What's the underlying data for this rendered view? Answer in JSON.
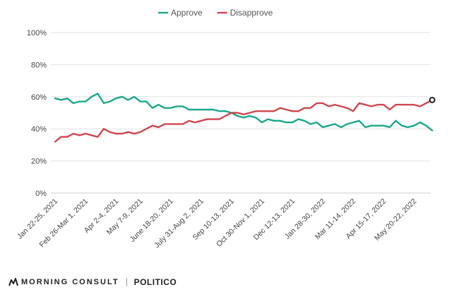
{
  "chart_data": {
    "type": "line",
    "title": "",
    "xlabel": "",
    "ylabel": "",
    "ylim": [
      0,
      100
    ],
    "y_ticks": [
      "0%",
      "20%",
      "40%",
      "60%",
      "80%",
      "100%"
    ],
    "grid": true,
    "legend_position": "top-center",
    "x_tick_labels": [
      "Jan 22-25, 2021",
      "Feb 26-Mar 1, 2021",
      "Apr 2-4, 2021",
      "May 7-9, 2021",
      "June 18-20, 2021",
      "July 31-Aug 2, 2021",
      "Sep 10-13, 2021",
      "Oct 30-Nov 1, 2021",
      "Dec 12-13, 2021",
      "Jan 28-30, 2022",
      "Mar 11-14, 2022",
      "Apr 15-17, 2022",
      "May 20-22, 2022"
    ],
    "x_tick_indices": [
      0,
      5,
      10,
      14,
      19,
      24,
      29,
      34,
      39,
      44,
      49,
      54,
      59
    ],
    "series": [
      {
        "name": "Approve",
        "color": "#1aa88a",
        "values": [
          59,
          58,
          59,
          56,
          57,
          57,
          60,
          62,
          56,
          57,
          59,
          60,
          58,
          60,
          57,
          57,
          53,
          55,
          53,
          53,
          54,
          54,
          52,
          52,
          52,
          52,
          52,
          51,
          51,
          50,
          48,
          47,
          48,
          47,
          44,
          46,
          45,
          45,
          44,
          44,
          46,
          45,
          43,
          44,
          41,
          42,
          43,
          41,
          43,
          44,
          45,
          41,
          42,
          42,
          42,
          41,
          45,
          42,
          41,
          42,
          44,
          42,
          39
        ]
      },
      {
        "name": "Disapprove",
        "color": "#d2464e",
        "values": [
          32,
          35,
          35,
          37,
          36,
          37,
          36,
          35,
          40,
          38,
          37,
          37,
          38,
          37,
          38,
          40,
          42,
          41,
          43,
          43,
          43,
          43,
          45,
          44,
          45,
          46,
          46,
          46,
          48,
          50,
          50,
          49,
          50,
          51,
          51,
          51,
          51,
          53,
          52,
          51,
          51,
          53,
          53,
          56,
          56,
          54,
          55,
          54,
          53,
          51,
          56,
          55,
          54,
          55,
          55,
          52,
          55,
          55,
          55,
          55,
          54,
          56,
          58
        ]
      }
    ]
  },
  "footer": {
    "brand_1": "MORNING CONSULT",
    "brand_2": "POLITICO"
  }
}
